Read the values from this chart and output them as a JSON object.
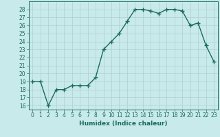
{
  "x": [
    0,
    1,
    2,
    3,
    4,
    5,
    6,
    7,
    8,
    9,
    10,
    11,
    12,
    13,
    14,
    15,
    16,
    17,
    18,
    19,
    20,
    21,
    22,
    23
  ],
  "y": [
    19,
    19,
    16,
    18,
    18,
    18.5,
    18.5,
    18.5,
    19.5,
    23,
    24,
    25,
    26.5,
    28,
    28,
    27.8,
    27.5,
    28,
    28,
    27.8,
    26,
    26.3,
    23.5,
    21.5
  ],
  "line_color": "#1a6b5a",
  "marker": "+",
  "marker_size": 4,
  "bg_color": "#c8eaea",
  "grid_color": "#b0d0d0",
  "xlabel": "Humidex (Indice chaleur)",
  "xlim": [
    -0.5,
    23.5
  ],
  "ylim": [
    15.5,
    29
  ],
  "yticks": [
    16,
    17,
    18,
    19,
    20,
    21,
    22,
    23,
    24,
    25,
    26,
    27,
    28
  ],
  "xticks": [
    0,
    1,
    2,
    3,
    4,
    5,
    6,
    7,
    8,
    9,
    10,
    11,
    12,
    13,
    14,
    15,
    16,
    17,
    18,
    19,
    20,
    21,
    22,
    23
  ],
  "tick_color": "#1a6b5a",
  "label_fontsize": 6.5,
  "tick_fontsize": 5.5,
  "line_width": 1.0,
  "marker_linewidth": 1.0
}
